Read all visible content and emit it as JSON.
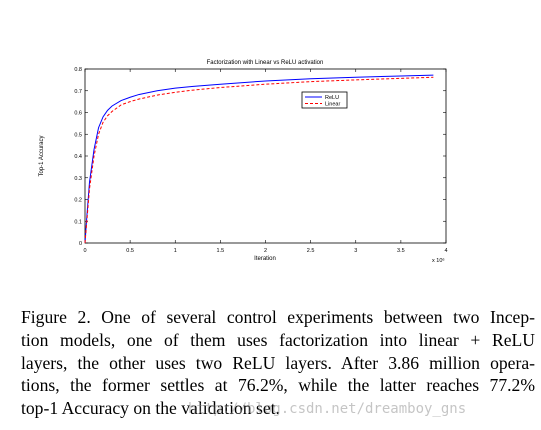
{
  "chart_data": {
    "type": "line",
    "title": "Factorization with Linear vs ReLU activation",
    "xlabel": "Iteration",
    "ylabel": "Top-1 Accuracy",
    "x_multiplier": "x 10⁶",
    "xlim": [
      0,
      4
    ],
    "ylim": [
      0,
      0.8
    ],
    "x_ticks": [
      0,
      0.5,
      1,
      1.5,
      2,
      2.5,
      3,
      3.5,
      4
    ],
    "x_tick_labels": [
      "0",
      "0.5",
      "1",
      "1.5",
      "2",
      "2.5",
      "3",
      "3.5",
      "4"
    ],
    "y_ticks": [
      0,
      0.1,
      0.2,
      0.3,
      0.4,
      0.5,
      0.6,
      0.7,
      0.8
    ],
    "y_tick_labels": [
      "0",
      "0.1",
      "0.2",
      "0.3",
      "0.4",
      "0.5",
      "0.6",
      "0.7",
      "0.8"
    ],
    "grid": false,
    "legend_position": "top-right",
    "series": [
      {
        "name": "ReLU",
        "color": "#0000ff",
        "style": "solid",
        "x": [
          0,
          0.02,
          0.05,
          0.08,
          0.1,
          0.15,
          0.2,
          0.25,
          0.3,
          0.4,
          0.5,
          0.6,
          0.8,
          1.0,
          1.2,
          1.5,
          2.0,
          2.5,
          3.0,
          3.5,
          3.86
        ],
        "y": [
          0,
          0.12,
          0.28,
          0.37,
          0.43,
          0.53,
          0.58,
          0.61,
          0.63,
          0.655,
          0.67,
          0.683,
          0.7,
          0.712,
          0.72,
          0.73,
          0.745,
          0.755,
          0.762,
          0.768,
          0.772
        ]
      },
      {
        "name": "Linear",
        "color": "#ff0000",
        "style": "dashed",
        "x": [
          0,
          0.02,
          0.05,
          0.08,
          0.1,
          0.15,
          0.2,
          0.25,
          0.3,
          0.4,
          0.5,
          0.6,
          0.8,
          1.0,
          1.2,
          1.5,
          2.0,
          2.5,
          3.0,
          3.5,
          3.86
        ],
        "y": [
          0,
          0.1,
          0.25,
          0.34,
          0.4,
          0.5,
          0.555,
          0.585,
          0.605,
          0.635,
          0.65,
          0.662,
          0.68,
          0.693,
          0.703,
          0.715,
          0.73,
          0.742,
          0.75,
          0.757,
          0.762
        ]
      }
    ]
  },
  "caption": {
    "lines": [
      "Figure 2. One of several control experiments between two Incep-",
      "tion models, one of them uses factorization into linear + ReLU",
      "layers, the other uses two ReLU layers. After 3.86 million opera-",
      "tions, the former settles at 76.2%, while the latter reaches 77.2%",
      "top-1 Accuracy on the validation set."
    ]
  },
  "watermark": "http://blog.csdn.net/dreamboy_gns"
}
